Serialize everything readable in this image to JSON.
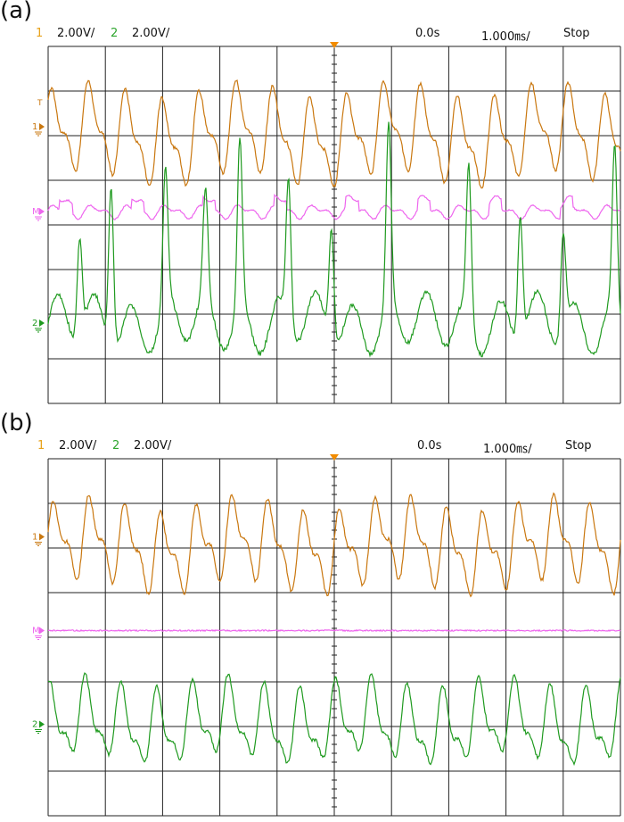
{
  "colors": {
    "ch1": "#c9770f",
    "ch1_label": "#e8a21a",
    "ch2": "#1f9a1f",
    "ch2_label": "#2ea52e",
    "math": "#ee66ee",
    "trigger": "#f28c00",
    "grid": "#222222"
  },
  "panels": [
    {
      "label": "(a)",
      "ch1_num": "1",
      "ch1_scale": "2.00V/",
      "ch2_num": "2",
      "ch2_scale": "2.00V/",
      "delay": "0.0s",
      "timebase": "1.000㎳/",
      "mode": "Stop",
      "marker_ch1": "1",
      "marker_math": "M",
      "marker_ch2": "2",
      "marker_trig": "T",
      "traces": {
        "ch1": {
          "center_div": 2.0,
          "amp_div": 1.05,
          "f1": 1.55,
          "f2": 3.1,
          "a2": 0.45,
          "phase": 0.6
        },
        "math": {
          "center_div": 3.7,
          "amp_div": 0.18,
          "pulsy": true
        },
        "ch2": {
          "center_div": 6.2,
          "amp_div": 0.55,
          "f1": 1.55,
          "spikes": [
            0.55,
            1.1,
            2.05,
            2.75,
            3.35,
            4.2,
            4.95,
            5.95,
            7.35,
            8.25,
            9.0,
            9.9
          ]
        }
      }
    },
    {
      "label": "(b)",
      "ch1_num": "1",
      "ch2_num": "2",
      "ch1_scale": "2.00V/",
      "ch2_scale": "2.00V/",
      "delay": "0.0s",
      "timebase": "1.000㎳/",
      "mode": "Stop",
      "marker_ch1": "1",
      "marker_math": "M",
      "marker_ch2": "2",
      "traces": {
        "ch1": {
          "center_div": 1.95,
          "amp_div": 0.95,
          "f1": 1.6,
          "f2": 3.2,
          "a2": 0.5,
          "phase": 0.2
        },
        "math": {
          "center_div": 3.85,
          "amp_div": 0.03,
          "pulsy": false
        },
        "ch2": {
          "center_div": 5.95,
          "amp_div": 0.85,
          "f1": 1.6,
          "f2": 3.2,
          "a2": 0.45,
          "phase": 1.1
        }
      }
    }
  ]
}
